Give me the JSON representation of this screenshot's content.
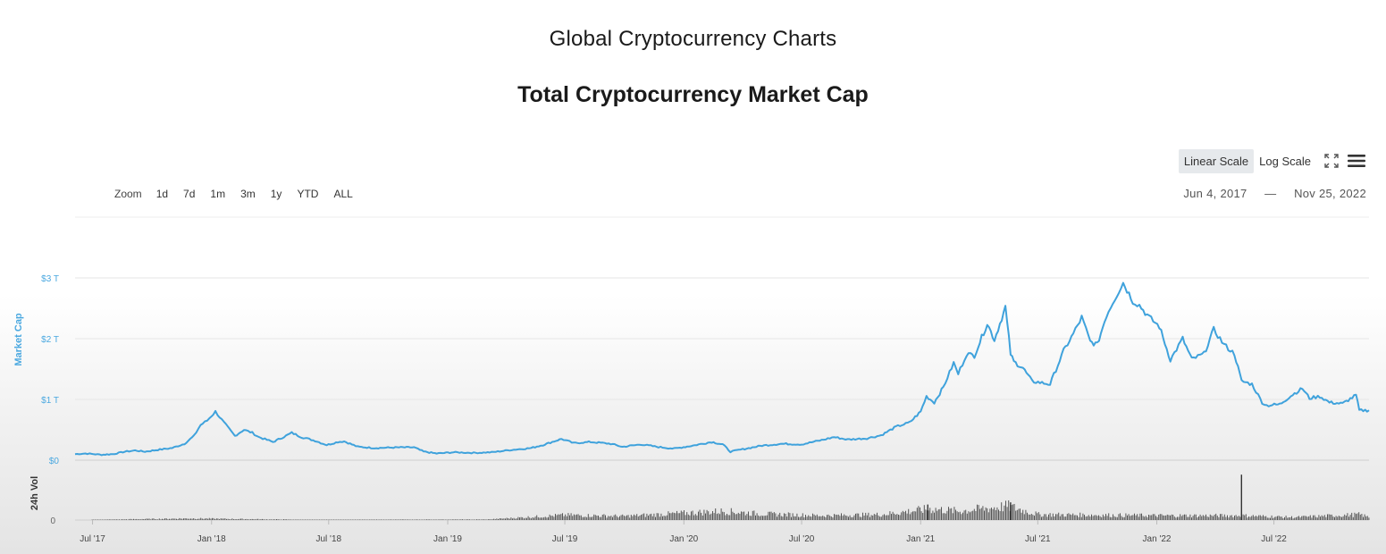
{
  "header": {
    "page_title": "Global Cryptocurrency Charts",
    "chart_title": "Total Cryptocurrency Market Cap"
  },
  "toolbar": {
    "zoom_label": "Zoom",
    "zoom_options": [
      "1d",
      "7d",
      "1m",
      "3m",
      "1y",
      "YTD",
      "ALL"
    ],
    "linear_scale_label": "Linear Scale",
    "log_scale_label": "Log Scale",
    "active_scale": "linear",
    "fullscreen_icon": "fullscreen-icon",
    "menu_icon": "hamburger-menu-icon"
  },
  "date_range": {
    "start": "Jun 4, 2017",
    "separator": "—",
    "end": "Nov 25, 2022"
  },
  "colors": {
    "line": "#3fa2dc",
    "volume": "#555555",
    "axis_label": "#4aa8e0"
  },
  "chart_data": {
    "type": "line",
    "ylabel": "Market Cap",
    "y_ticks": [
      "$0",
      "$1 T",
      "$2 T",
      "$3 T"
    ],
    "ylim": [
      0,
      3
    ],
    "y_unit": "trillion USD",
    "x_ticks": [
      "Jul '17",
      "Jan '18",
      "Jul '18",
      "Jan '19",
      "Jul '19",
      "Jan '20",
      "Jul '20",
      "Jan '21",
      "Jul '21",
      "Jan '22",
      "Jul '22"
    ],
    "x_tick_dates": [
      "2017-07-01",
      "2018-01-01",
      "2018-07-01",
      "2019-01-01",
      "2019-07-01",
      "2020-01-01",
      "2020-07-01",
      "2021-01-01",
      "2021-07-01",
      "2022-01-01",
      "2022-07-01"
    ],
    "xlim": [
      "2017-06-04",
      "2022-11-25"
    ],
    "grid": true,
    "series": [
      {
        "type": "line",
        "points": [
          [
            "2017-06-04",
            0.1
          ],
          [
            "2017-06-20",
            0.11
          ],
          [
            "2017-07-15",
            0.09
          ],
          [
            "2017-08-01",
            0.1
          ],
          [
            "2017-08-20",
            0.14
          ],
          [
            "2017-09-05",
            0.16
          ],
          [
            "2017-09-20",
            0.14
          ],
          [
            "2017-10-10",
            0.17
          ],
          [
            "2017-11-01",
            0.2
          ],
          [
            "2017-11-20",
            0.27
          ],
          [
            "2017-12-05",
            0.4
          ],
          [
            "2017-12-15",
            0.58
          ],
          [
            "2017-12-25",
            0.65
          ],
          [
            "2018-01-07",
            0.8
          ],
          [
            "2018-01-20",
            0.62
          ],
          [
            "2018-02-06",
            0.4
          ],
          [
            "2018-02-20",
            0.5
          ],
          [
            "2018-03-05",
            0.45
          ],
          [
            "2018-03-15",
            0.38
          ],
          [
            "2018-04-06",
            0.3
          ],
          [
            "2018-04-20",
            0.37
          ],
          [
            "2018-05-05",
            0.45
          ],
          [
            "2018-05-20",
            0.38
          ],
          [
            "2018-06-10",
            0.32
          ],
          [
            "2018-06-28",
            0.25
          ],
          [
            "2018-07-15",
            0.3
          ],
          [
            "2018-07-25",
            0.31
          ],
          [
            "2018-08-15",
            0.22
          ],
          [
            "2018-09-10",
            0.2
          ],
          [
            "2018-10-15",
            0.21
          ],
          [
            "2018-11-10",
            0.21
          ],
          [
            "2018-11-25",
            0.14
          ],
          [
            "2018-12-15",
            0.11
          ],
          [
            "2019-01-10",
            0.13
          ],
          [
            "2019-02-10",
            0.12
          ],
          [
            "2019-03-10",
            0.13
          ],
          [
            "2019-04-10",
            0.17
          ],
          [
            "2019-05-10",
            0.2
          ],
          [
            "2019-05-28",
            0.25
          ],
          [
            "2019-06-26",
            0.35
          ],
          [
            "2019-07-15",
            0.28
          ],
          [
            "2019-08-10",
            0.3
          ],
          [
            "2019-09-10",
            0.27
          ],
          [
            "2019-09-28",
            0.22
          ],
          [
            "2019-10-27",
            0.26
          ],
          [
            "2019-11-20",
            0.22
          ],
          [
            "2019-12-17",
            0.19
          ],
          [
            "2020-01-15",
            0.24
          ],
          [
            "2020-02-13",
            0.3
          ],
          [
            "2020-03-01",
            0.26
          ],
          [
            "2020-03-13",
            0.14
          ],
          [
            "2020-04-01",
            0.18
          ],
          [
            "2020-05-01",
            0.24
          ],
          [
            "2020-06-01",
            0.27
          ],
          [
            "2020-07-01",
            0.26
          ],
          [
            "2020-08-01",
            0.33
          ],
          [
            "2020-08-20",
            0.38
          ],
          [
            "2020-09-10",
            0.34
          ],
          [
            "2020-10-10",
            0.36
          ],
          [
            "2020-11-01",
            0.41
          ],
          [
            "2020-11-24",
            0.55
          ],
          [
            "2020-12-15",
            0.62
          ],
          [
            "2021-01-01",
            0.8
          ],
          [
            "2021-01-10",
            1.05
          ],
          [
            "2021-01-22",
            0.95
          ],
          [
            "2021-02-05",
            1.2
          ],
          [
            "2021-02-21",
            1.6
          ],
          [
            "2021-02-28",
            1.42
          ],
          [
            "2021-03-13",
            1.75
          ],
          [
            "2021-03-25",
            1.72
          ],
          [
            "2021-04-14",
            2.25
          ],
          [
            "2021-04-25",
            1.98
          ],
          [
            "2021-05-12",
            2.52
          ],
          [
            "2021-05-20",
            1.75
          ],
          [
            "2021-05-25",
            1.62
          ],
          [
            "2021-06-08",
            1.52
          ],
          [
            "2021-06-22",
            1.3
          ],
          [
            "2021-07-20",
            1.25
          ],
          [
            "2021-08-10",
            1.8
          ],
          [
            "2021-08-25",
            2.08
          ],
          [
            "2021-09-07",
            2.35
          ],
          [
            "2021-09-20",
            1.95
          ],
          [
            "2021-10-01",
            1.9
          ],
          [
            "2021-10-15",
            2.38
          ],
          [
            "2021-10-25",
            2.6
          ],
          [
            "2021-11-10",
            2.92
          ],
          [
            "2021-11-25",
            2.62
          ],
          [
            "2021-12-05",
            2.55
          ],
          [
            "2021-12-20",
            2.35
          ],
          [
            "2022-01-05",
            2.2
          ],
          [
            "2022-01-22",
            1.65
          ],
          [
            "2022-02-10",
            2.0
          ],
          [
            "2022-02-24",
            1.66
          ],
          [
            "2022-03-15",
            1.75
          ],
          [
            "2022-03-30",
            2.15
          ],
          [
            "2022-04-15",
            1.9
          ],
          [
            "2022-05-01",
            1.75
          ],
          [
            "2022-05-12",
            1.3
          ],
          [
            "2022-05-28",
            1.25
          ],
          [
            "2022-06-13",
            0.95
          ],
          [
            "2022-06-20",
            0.9
          ],
          [
            "2022-07-10",
            0.92
          ],
          [
            "2022-07-30",
            1.08
          ],
          [
            "2022-08-14",
            1.18
          ],
          [
            "2022-08-25",
            1.02
          ],
          [
            "2022-09-10",
            1.05
          ],
          [
            "2022-09-25",
            0.95
          ],
          [
            "2022-10-15",
            0.93
          ],
          [
            "2022-11-05",
            1.07
          ],
          [
            "2022-11-10",
            0.82
          ],
          [
            "2022-11-25",
            0.82
          ]
        ]
      },
      {
        "type": "bar",
        "name": "24h Vol",
        "y_ticks": [
          "0"
        ],
        "level_points": [
          [
            "2017-06-04",
            0.0
          ],
          [
            "2017-12-01",
            0.03
          ],
          [
            "2018-02-01",
            0.02
          ],
          [
            "2018-06-01",
            0.005
          ],
          [
            "2019-03-01",
            0.01
          ],
          [
            "2019-05-01",
            0.05
          ],
          [
            "2019-07-01",
            0.09
          ],
          [
            "2019-10-01",
            0.07
          ],
          [
            "2020-03-01",
            0.16
          ],
          [
            "2020-05-01",
            0.11
          ],
          [
            "2020-08-01",
            0.08
          ],
          [
            "2020-11-01",
            0.1
          ],
          [
            "2021-01-15",
            0.2
          ],
          [
            "2021-03-01",
            0.16
          ],
          [
            "2021-05-15",
            0.25
          ],
          [
            "2021-07-01",
            0.1
          ],
          [
            "2021-10-01",
            0.09
          ],
          [
            "2022-01-01",
            0.08
          ],
          [
            "2022-05-10",
            0.08
          ],
          [
            "2022-08-01",
            0.05
          ],
          [
            "2022-11-10",
            0.1
          ],
          [
            "2022-11-25",
            0.05
          ]
        ],
        "spikes": [
          [
            "2022-05-11",
            0.82
          ],
          [
            "2021-05-19",
            0.32
          ],
          [
            "2021-01-11",
            0.28
          ]
        ]
      }
    ]
  }
}
